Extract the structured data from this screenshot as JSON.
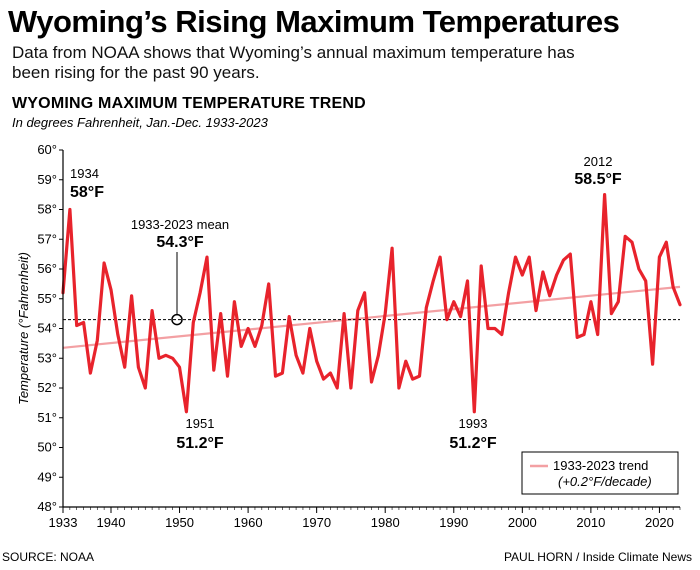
{
  "header": {
    "headline": "Wyoming’s Rising Maximum Temperatures",
    "dek": "Data from NOAA shows that Wyoming’s annual maximum temperature has been rising for the past 90 years."
  },
  "chart_data": {
    "type": "line",
    "title": "WYOMING MAXIMUM TEMPERATURE TREND",
    "subtitle": "In degrees Fahrenheit, Jan.-Dec. 1933-2023",
    "ylabel": "Temperature (°Fahrenheit)",
    "xlabel": "",
    "xlim": [
      1933,
      2023
    ],
    "ylim": [
      48,
      60
    ],
    "x_ticks": [
      {
        "value": 1933,
        "label": "1933"
      },
      {
        "value": 1940,
        "label": "1940"
      },
      {
        "value": 1950,
        "label": "1950"
      },
      {
        "value": 1960,
        "label": "1960"
      },
      {
        "value": 1970,
        "label": "1970"
      },
      {
        "value": 1980,
        "label": "1980"
      },
      {
        "value": 1990,
        "label": "1990"
      },
      {
        "value": 2000,
        "label": "2000"
      },
      {
        "value": 2010,
        "label": "2010"
      },
      {
        "value": 2020,
        "label": "2020"
      }
    ],
    "y_ticks": [
      {
        "value": 48,
        "label": "48°"
      },
      {
        "value": 49,
        "label": "49°"
      },
      {
        "value": 50,
        "label": "50°"
      },
      {
        "value": 51,
        "label": "51°"
      },
      {
        "value": 52,
        "label": "52°"
      },
      {
        "value": 53,
        "label": "53°"
      },
      {
        "value": 54,
        "label": "54°"
      },
      {
        "value": 55,
        "label": "55°"
      },
      {
        "value": 56,
        "label": "56°"
      },
      {
        "value": 57,
        "label": "57°"
      },
      {
        "value": 58,
        "label": "58°"
      },
      {
        "value": 59,
        "label": "59°"
      },
      {
        "value": 60,
        "label": "60°"
      }
    ],
    "grid": false,
    "series": [
      {
        "name": "",
        "color": "#e8232c",
        "x": [
          1933,
          1934,
          1935,
          1936,
          1937,
          1938,
          1939,
          1940,
          1941,
          1942,
          1943,
          1944,
          1945,
          1946,
          1947,
          1948,
          1949,
          1950,
          1951,
          1952,
          1953,
          1954,
          1955,
          1956,
          1957,
          1958,
          1959,
          1960,
          1961,
          1962,
          1963,
          1964,
          1965,
          1966,
          1967,
          1968,
          1969,
          1970,
          1971,
          1972,
          1973,
          1974,
          1975,
          1976,
          1977,
          1978,
          1979,
          1980,
          1981,
          1982,
          1983,
          1984,
          1985,
          1986,
          1987,
          1988,
          1989,
          1990,
          1991,
          1992,
          1993,
          1994,
          1995,
          1996,
          1997,
          1998,
          1999,
          2000,
          2001,
          2002,
          2003,
          2004,
          2005,
          2006,
          2007,
          2008,
          2009,
          2010,
          2011,
          2012,
          2013,
          2014,
          2015,
          2016,
          2017,
          2018,
          2019,
          2020,
          2021,
          2022,
          2023
        ],
        "values": [
          55.2,
          58.0,
          54.1,
          54.2,
          52.5,
          53.6,
          56.2,
          55.3,
          53.8,
          52.7,
          55.1,
          52.7,
          52.0,
          54.6,
          53.0,
          53.1,
          53.0,
          52.7,
          51.2,
          54.2,
          55.2,
          56.4,
          52.6,
          54.5,
          52.4,
          54.9,
          53.4,
          54.0,
          53.4,
          54.1,
          55.5,
          52.4,
          52.5,
          54.4,
          53.1,
          52.5,
          54.0,
          52.9,
          52.3,
          52.5,
          52.0,
          54.5,
          52.0,
          54.6,
          55.2,
          52.2,
          53.1,
          54.5,
          56.7,
          52.0,
          52.9,
          52.3,
          52.4,
          54.7,
          55.6,
          56.4,
          54.3,
          54.9,
          54.4,
          55.6,
          51.2,
          56.1,
          54.0,
          54.0,
          53.8,
          55.2,
          56.4,
          55.8,
          56.4,
          54.6,
          55.9,
          55.1,
          55.8,
          56.3,
          56.5,
          53.7,
          53.8,
          54.9,
          53.8,
          58.5,
          54.5,
          54.9,
          57.1,
          56.9,
          56.0,
          55.6,
          52.8,
          56.4,
          56.9,
          55.4,
          54.8
        ]
      }
    ],
    "mean": {
      "value": 54.3,
      "label": "1933-2023 mean",
      "value_label": "54.3°F"
    },
    "trend": {
      "start_value": 53.35,
      "end_value": 55.4,
      "color": "#f3a0a3",
      "label": "1933-2023 trend",
      "sublabel": "(+0.2°F/decade)"
    },
    "annotations": [
      {
        "year": "1934",
        "value": "58°F"
      },
      {
        "year": "1951",
        "value": "51.2°F"
      },
      {
        "year": "1993",
        "value": "51.2°F"
      },
      {
        "year": "2012",
        "value": "58.5°F"
      }
    ],
    "legend_position": "bottom-right"
  },
  "footer": {
    "source": "SOURCE: NOAA",
    "credit": "PAUL HORN / Inside Climate News"
  }
}
